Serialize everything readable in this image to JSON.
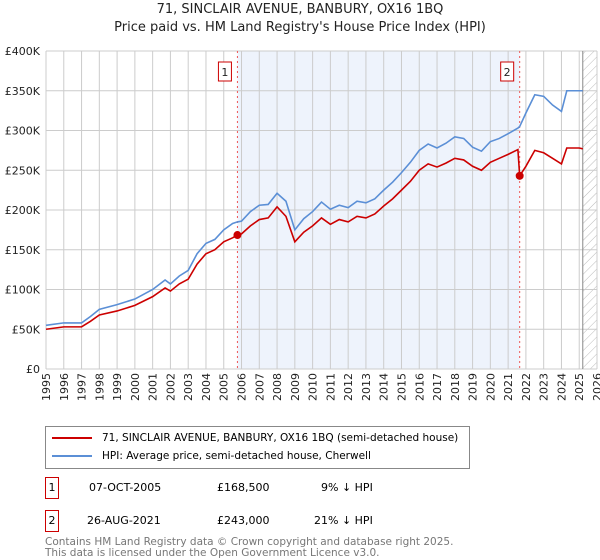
{
  "chart_data": {
    "type": "line",
    "title": "71, SINCLAIR AVENUE, BANBURY, OX16 1BQ",
    "subtitle": "Price paid vs. HM Land Registry's House Price Index (HPI)",
    "xlim": [
      1995,
      2026
    ],
    "ylim": [
      0,
      400000
    ],
    "y_ticks": [
      {
        "v": 0,
        "l": "£0"
      },
      {
        "v": 50000,
        "l": "£50K"
      },
      {
        "v": 100000,
        "l": "£100K"
      },
      {
        "v": 150000,
        "l": "£150K"
      },
      {
        "v": 200000,
        "l": "£200K"
      },
      {
        "v": 250000,
        "l": "£250K"
      },
      {
        "v": 300000,
        "l": "£300K"
      },
      {
        "v": 350000,
        "l": "£350K"
      },
      {
        "v": 400000,
        "l": "£400K"
      }
    ],
    "x_ticks": [
      "1995",
      "1996",
      "1997",
      "1998",
      "1999",
      "2000",
      "2001",
      "2002",
      "2003",
      "2004",
      "2005",
      "2006",
      "2007",
      "2008",
      "2009",
      "2010",
      "2011",
      "2012",
      "2013",
      "2014",
      "2015",
      "2016",
      "2017",
      "2018",
      "2019",
      "2020",
      "2021",
      "2022",
      "2023",
      "2024",
      "2025",
      "2026"
    ],
    "grid": true,
    "series": [
      {
        "name": "71, SINCLAIR AVENUE, BANBURY, OX16 1BQ (semi-detached house)",
        "color": "#cc0000",
        "x": [
          1995,
          1996,
          1997,
          1997.5,
          1998,
          1999,
          2000,
          2001,
          2001.7,
          2002,
          2002.5,
          2003,
          2003.5,
          2004,
          2004.5,
          2005,
          2005.5,
          2005.77,
          2006,
          2006.5,
          2007,
          2007.5,
          2008,
          2008.5,
          2009,
          2009.5,
          2010,
          2010.5,
          2011,
          2011.5,
          2012,
          2012.5,
          2013,
          2013.5,
          2014,
          2014.5,
          2015,
          2015.5,
          2016,
          2016.5,
          2017,
          2017.5,
          2018,
          2018.5,
          2019,
          2019.5,
          2020,
          2020.5,
          2021,
          2021.55,
          2021.65,
          2022,
          2022.5,
          2023,
          2023.5,
          2024,
          2024.3,
          2025,
          2025.2
        ],
        "y": [
          50000,
          53000,
          53000,
          60000,
          68000,
          73000,
          80000,
          91000,
          102000,
          98000,
          107000,
          113000,
          132000,
          145000,
          150000,
          160000,
          165000,
          168500,
          170000,
          180000,
          188000,
          190000,
          204000,
          192000,
          160000,
          172000,
          180000,
          190000,
          182000,
          188000,
          185000,
          192000,
          190000,
          195000,
          205000,
          214000,
          225000,
          236000,
          250000,
          258000,
          254000,
          259000,
          265000,
          263000,
          255000,
          250000,
          260000,
          265000,
          270000,
          276000,
          243000,
          255000,
          275000,
          272000,
          265000,
          258000,
          278000,
          278000,
          277000
        ]
      },
      {
        "name": "HPI: Average price, semi-detached house, Cherwell",
        "color": "#5b8fd6",
        "x": [
          1995,
          1996,
          1997,
          1997.5,
          1998,
          1999,
          2000,
          2001,
          2001.7,
          2002,
          2002.5,
          2003,
          2003.5,
          2004,
          2004.5,
          2005,
          2005.5,
          2005.77,
          2006,
          2006.5,
          2007,
          2007.5,
          2008,
          2008.5,
          2009,
          2009.5,
          2010,
          2010.5,
          2011,
          2011.5,
          2012,
          2012.5,
          2013,
          2013.5,
          2014,
          2014.5,
          2015,
          2015.5,
          2016,
          2016.5,
          2017,
          2017.5,
          2018,
          2018.5,
          2019,
          2019.5,
          2020,
          2020.5,
          2021,
          2021.55,
          2021.65,
          2022,
          2022.5,
          2023,
          2023.5,
          2024,
          2024.3,
          2025,
          2025.2
        ],
        "y": [
          55000,
          58000,
          58000,
          66000,
          75000,
          81000,
          88000,
          100000,
          112000,
          107000,
          117000,
          124000,
          145000,
          158000,
          163000,
          175000,
          183000,
          185000,
          186000,
          198000,
          206000,
          207000,
          221000,
          211000,
          175000,
          189000,
          198000,
          210000,
          201000,
          206000,
          203000,
          211000,
          209000,
          214000,
          225000,
          235000,
          247000,
          260000,
          275000,
          283000,
          278000,
          284000,
          292000,
          290000,
          279000,
          274000,
          286000,
          290000,
          296000,
          303000,
          305000,
          322000,
          345000,
          343000,
          332000,
          324000,
          350000,
          350000,
          350000
        ]
      }
    ],
    "sales": [
      {
        "label": "1",
        "x": 2005.77,
        "y": 168500
      },
      {
        "label": "2",
        "x": 2021.65,
        "y": 243000
      }
    ],
    "shaded_range": [
      2005.77,
      2021.65
    ],
    "hatched_from": 2025.2,
    "legend_position": "below"
  },
  "annotations": [
    {
      "label": "1",
      "date": "07-OCT-2005",
      "price": "£168,500",
      "hpi": "9% ↓ HPI"
    },
    {
      "label": "2",
      "date": "26-AUG-2021",
      "price": "£243,000",
      "hpi": "21% ↓ HPI"
    }
  ],
  "footer": {
    "line1": "Contains HM Land Registry data © Crown copyright and database right 2025.",
    "line2": "This data is licensed under the Open Government Licence v3.0."
  }
}
